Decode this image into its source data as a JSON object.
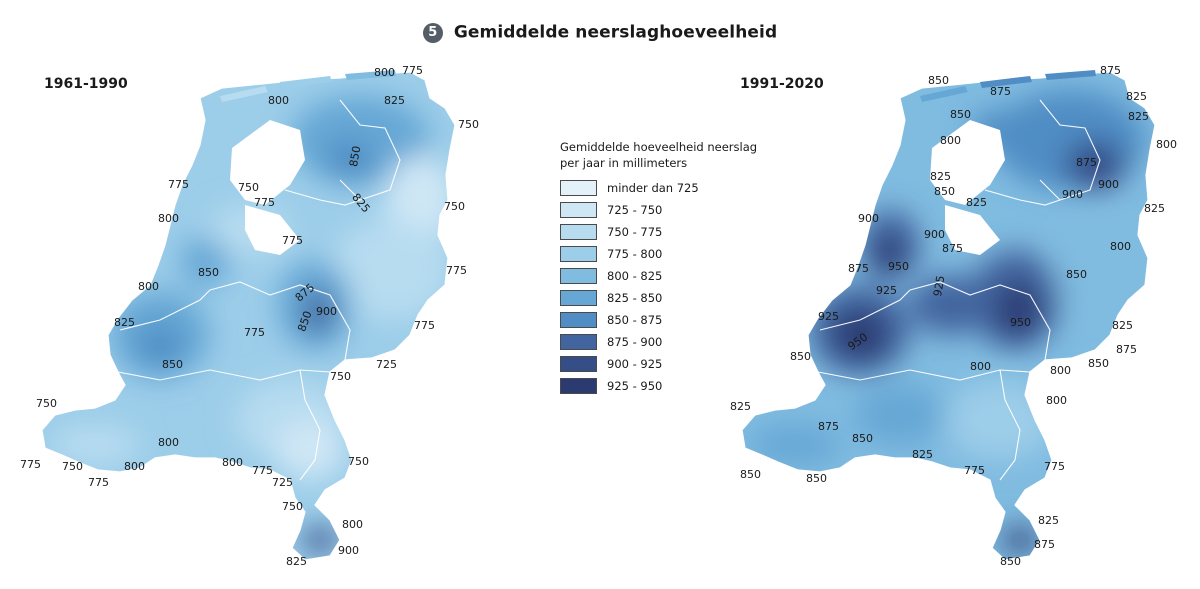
{
  "figure": {
    "number": "5",
    "title": "Gemiddelde neerslaghoeveelheid"
  },
  "periods": {
    "left": "1961-1990",
    "right": "1991-2020"
  },
  "legend": {
    "title_line1": "Gemiddelde hoeveelheid neerslag",
    "title_line2": "per jaar in millimeters",
    "classes": [
      {
        "label": "minder dan 725",
        "color": "#e3f1fa"
      },
      {
        "label": "725 - 750",
        "color": "#cfe7f5"
      },
      {
        "label": "750 - 775",
        "color": "#b7dcf0"
      },
      {
        "label": "775 - 800",
        "color": "#9ccde9"
      },
      {
        "label": "800 - 825",
        "color": "#80bbe0"
      },
      {
        "label": "825 - 850",
        "color": "#66a7d5"
      },
      {
        "label": "850 - 875",
        "color": "#4f8dc4"
      },
      {
        "label": "875 - 900",
        "color": "#42659f"
      },
      {
        "label": "900 - 925",
        "color": "#354e88"
      },
      {
        "label": "925 - 950",
        "color": "#2b3a71"
      }
    ]
  },
  "map_left_labels": [
    "800",
    "775",
    "800",
    "750",
    "825",
    "850",
    "775",
    "750",
    "800",
    "775",
    "750",
    "800",
    "725",
    "775",
    "775",
    "875",
    "900",
    "850",
    "850",
    "825",
    "850",
    "775",
    "800",
    "825",
    "775",
    "750",
    "725",
    "750",
    "750",
    "800",
    "775",
    "750",
    "775",
    "800",
    "800",
    "775",
    "725",
    "750",
    "750",
    "800",
    "900",
    "825"
  ],
  "map_right_labels": [
    "850",
    "875",
    "875",
    "825",
    "850",
    "825",
    "800",
    "800",
    "800",
    "825",
    "875",
    "900",
    "900",
    "825",
    "825",
    "850",
    "900",
    "875",
    "900",
    "925",
    "950",
    "925",
    "925",
    "950",
    "950",
    "875",
    "850",
    "800",
    "800",
    "850",
    "800",
    "825",
    "875",
    "850",
    "825",
    "875",
    "850",
    "850",
    "850",
    "825",
    "825",
    "775",
    "775",
    "825",
    "875",
    "850"
  ]
}
